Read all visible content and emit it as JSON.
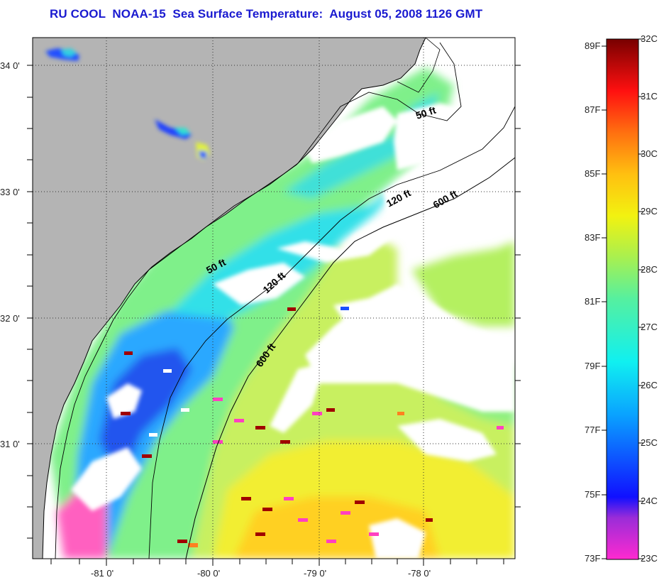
{
  "title": "RU COOL  NOAA-15  Sea Surface Temperature:  August 05, 2008 1126 GMT",
  "axes": {
    "lon_labels": [
      "-81 0'",
      "-80 0'",
      "-79 0'",
      "-78 0'"
    ],
    "lat_labels": [
      "34 0'",
      "33 0'",
      "32 0'",
      "31 0'"
    ]
  },
  "contours": [
    "50 ft",
    "50 ft",
    "120 ft",
    "120 ft",
    "600 ft",
    "600 ft"
  ],
  "colorbar": {
    "fahrenheit": [
      "89F",
      "87F",
      "85F",
      "83F",
      "81F",
      "79F",
      "77F",
      "75F",
      "73F"
    ],
    "celsius": [
      "32C",
      "31C",
      "30C",
      "29C",
      "28C",
      "27C",
      "26C",
      "25C",
      "24C",
      "23C"
    ]
  },
  "colors": {
    "land": "#b4b4b4",
    "cloud": "#ffffff",
    "title": "#1a1ad0"
  }
}
